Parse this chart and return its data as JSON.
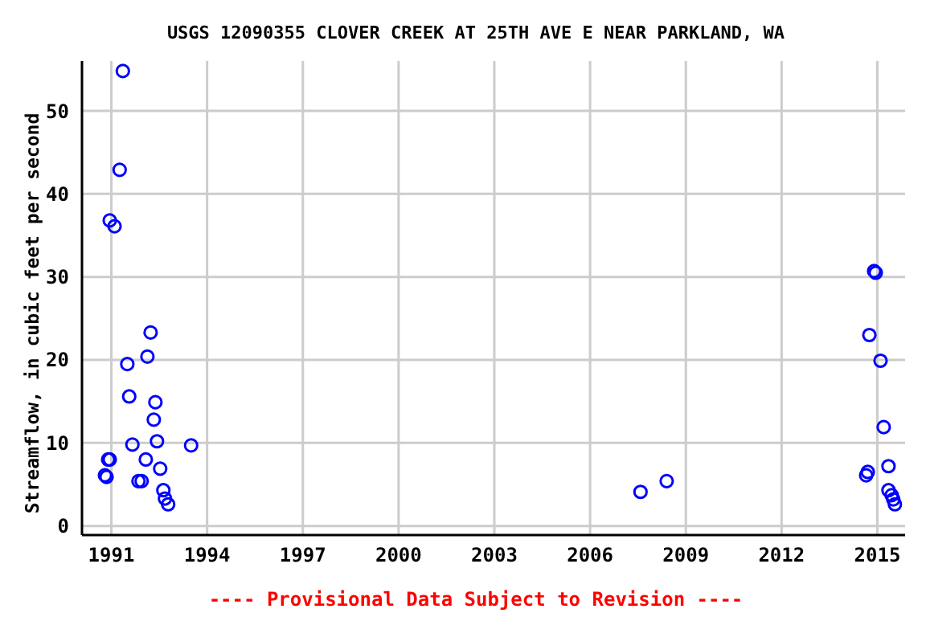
{
  "chart_data": {
    "type": "scatter",
    "title": "USGS 12090355 CLOVER CREEK AT 25TH AVE E NEAR PARKLAND, WA",
    "ylabel": "Streamflow, in cubic feet per second",
    "annotations": [
      "---- Provisional Data Subject to Revision ----"
    ],
    "x": [
      1991.36,
      1991.26,
      1990.95,
      1991.1,
      1991.5,
      1991.56,
      1990.9,
      1990.8,
      1990.85,
      1990.95,
      1991.66,
      1991.85,
      1991.95,
      1992.13,
      1992.23,
      1992.38,
      1992.33,
      1992.43,
      1992.08,
      1992.53,
      1992.63,
      1992.68,
      1992.78,
      1993.5,
      2007.58,
      2008.4,
      2014.9,
      2014.95,
      2014.75,
      2015.1,
      2015.2,
      2015.35,
      2014.65,
      2014.7,
      2015.35,
      2015.45,
      2015.5,
      2015.55
    ],
    "series": [
      {
        "color": "#0000ff",
        "values": [
          54.8,
          42.9,
          36.8,
          36.1,
          19.5,
          15.6,
          8.0,
          6.1,
          5.9,
          8.0,
          9.8,
          5.4,
          5.4,
          20.4,
          23.3,
          14.9,
          12.8,
          10.2,
          8.0,
          6.9,
          4.3,
          3.3,
          2.6,
          9.7,
          4.1,
          5.4,
          30.7,
          30.5,
          23.0,
          19.9,
          11.9,
          7.2,
          6.1,
          6.5,
          4.3,
          3.7,
          3.2,
          2.6
        ]
      }
    ],
    "xlim": [
      1990.08,
      2015.87
    ],
    "xticks": [
      1991,
      1994,
      1997,
      2000,
      2003,
      2006,
      2009,
      2012,
      2015
    ],
    "ylim": [
      -1.1,
      56
    ],
    "yticks": [
      0,
      10,
      20,
      30,
      40,
      50
    ],
    "grid": true,
    "marker": "circle"
  }
}
